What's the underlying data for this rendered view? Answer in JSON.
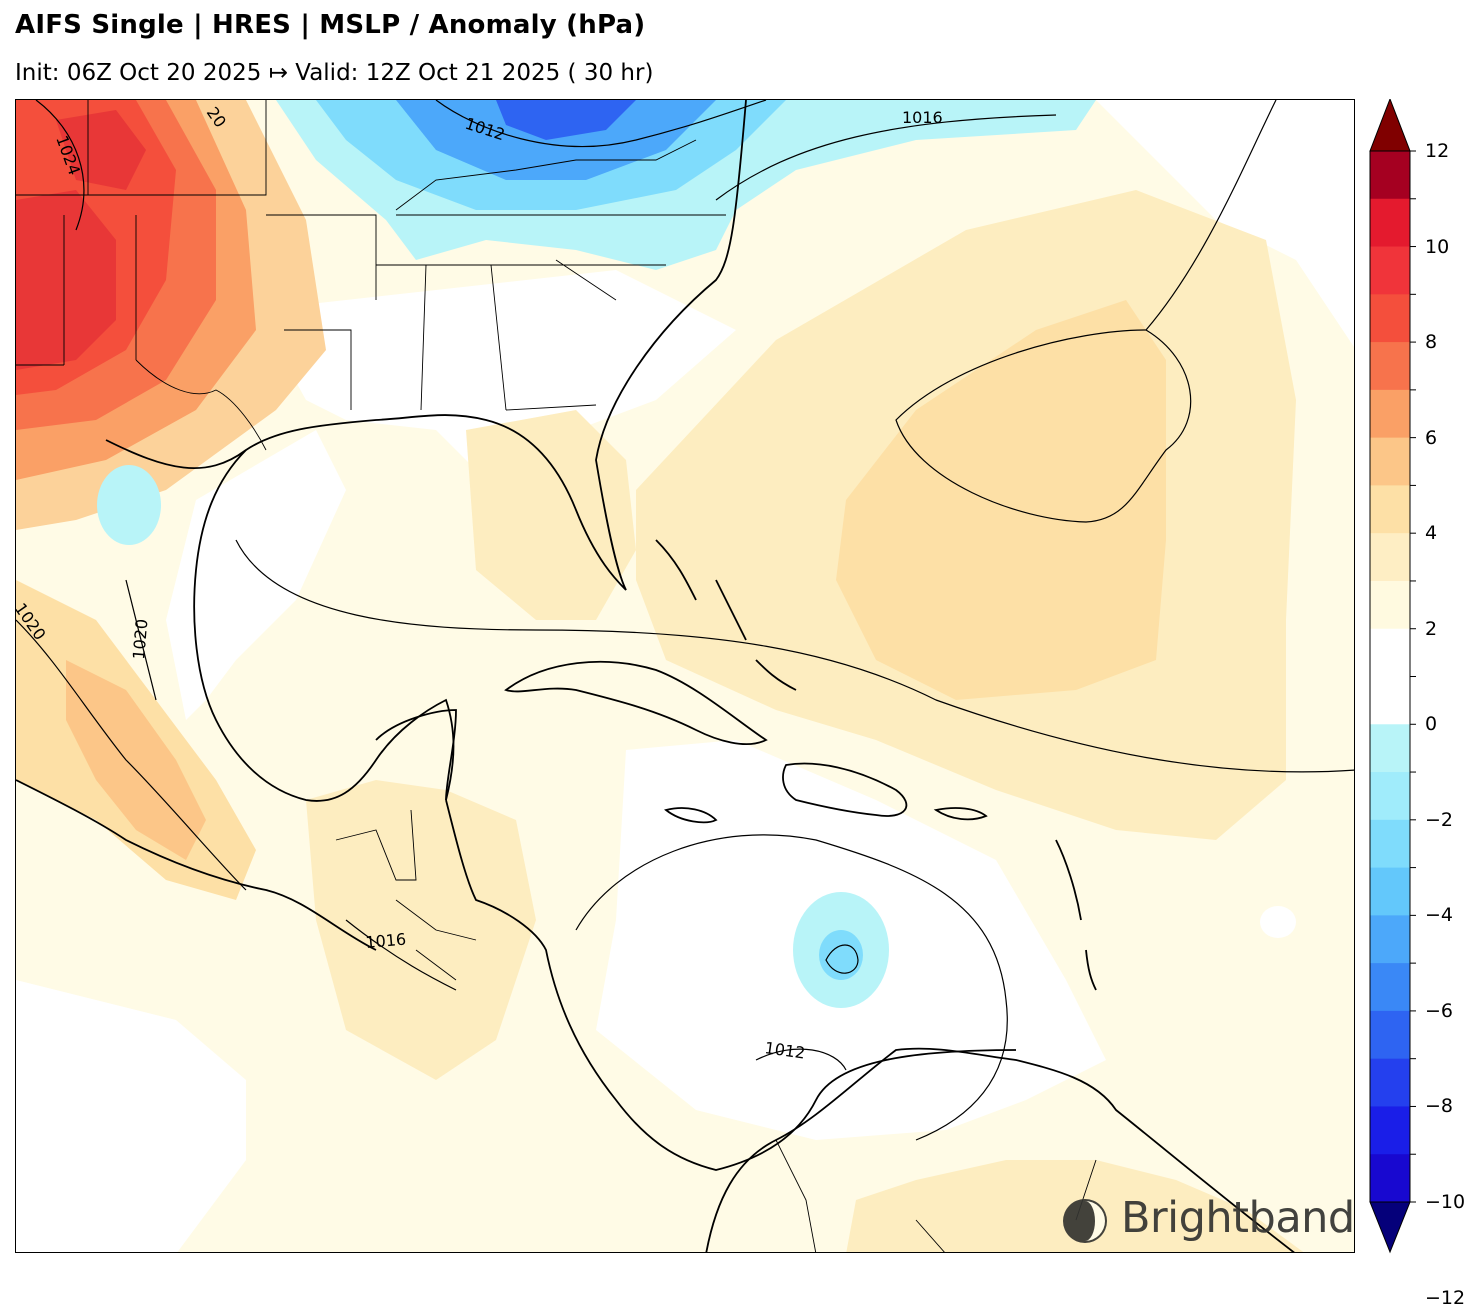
{
  "header": {
    "title": "AIFS Single | HRES | MSLP / Anomaly (hPa)",
    "subtitle": "Init: 06Z Oct 20 2025 ↦ Valid: 12Z Oct 21 2025 ( 30 hr)"
  },
  "map": {
    "region": "Gulf of Mexico, Caribbean and western Atlantic",
    "contour_labels": [
      "1012",
      "1016",
      "1016",
      "1020",
      "1020",
      "1024",
      "20",
      "1012"
    ]
  },
  "colorbar": {
    "label_values": [
      "12",
      "10",
      "8",
      "6",
      "4",
      "2",
      "0",
      "−2",
      "−4",
      "−6",
      "−8",
      "−10",
      "−12"
    ],
    "min": -12,
    "max": 12,
    "colors": {
      "extend_max": "#800000",
      "p11": "#a50021",
      "p10": "#e41a2e",
      "p9": "#f0343a",
      "p8": "#f44f3c",
      "p7": "#f7734c",
      "p6": "#faa066",
      "p5": "#fcc688",
      "p4": "#fde0a6",
      "p3": "#feeec4",
      "p2": "#fffae0",
      "zero_pos": "#ffffff",
      "zero_neg": "#ffffff",
      "n2": "#b8f4f8",
      "n3": "#a0ecfb",
      "n4": "#7fdcfc",
      "n5": "#63c8fb",
      "n6": "#4ca8fa",
      "n7": "#3a88f6",
      "n8": "#2e64f2",
      "n9": "#2440ee",
      "n10": "#1a1ee8",
      "n11": "#1808d0",
      "extend_min": "#05007a"
    }
  },
  "branding": {
    "logo_text": "Brightband"
  }
}
